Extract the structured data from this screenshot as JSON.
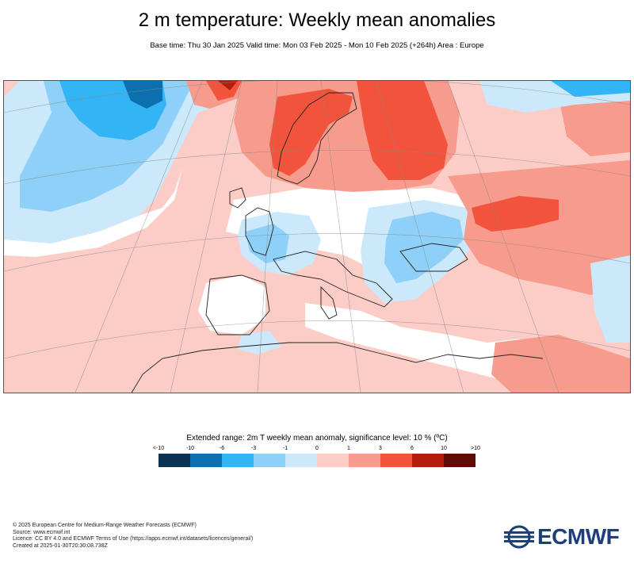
{
  "title": "2 m temperature: Weekly mean anomalies",
  "subtitle": "Base time: Thu 30 Jan 2025 Valid time: Mon 03 Feb 2025 - Mon 10 Feb 2025 (+264h) Area : Europe",
  "legend": {
    "title": "Extended range: 2m T weekly mean anomaly, significance level: 10 % (ºC)",
    "ticks": [
      "<-10",
      "-10",
      "-6",
      "-3",
      "-1",
      "0",
      "1",
      "3",
      "6",
      "10",
      ">10"
    ],
    "colors": [
      "#0a3352",
      "#0c6fae",
      "#33b5f5",
      "#8fd0f8",
      "#cbe9fb",
      "#fbcdc6",
      "#f79b8c",
      "#f2533c",
      "#b31e0c",
      "#5e0e04"
    ]
  },
  "footer": {
    "copyright": "© 2025 European Centre for Medium-Range Weather Forecasts (ECMWF)",
    "source": "Source: www.ecmwf.int",
    "licence": "Licence: CC BY 4.0 and ECMWF Terms of Use (https://apps.ecmwf.int/datasets/licences/general/)",
    "created": "Created at 2025-01-30T20:30:08.738Z"
  },
  "logo": {
    "text": "ECMWF",
    "color": "#1d3f7a"
  },
  "map": {
    "region": "Europe",
    "palette": {
      "strong_warm": "#f2533c",
      "very_warm": "#b31e0c",
      "moderate_warm": "#f79b8c",
      "weak_warm": "#fbcdc6",
      "neutral": "#ffffff",
      "weak_cold": "#cbe9fb",
      "moderate_cold": "#8fd0f8",
      "strong_cold": "#33b5f5",
      "very_cold": "#0c6fae"
    }
  }
}
